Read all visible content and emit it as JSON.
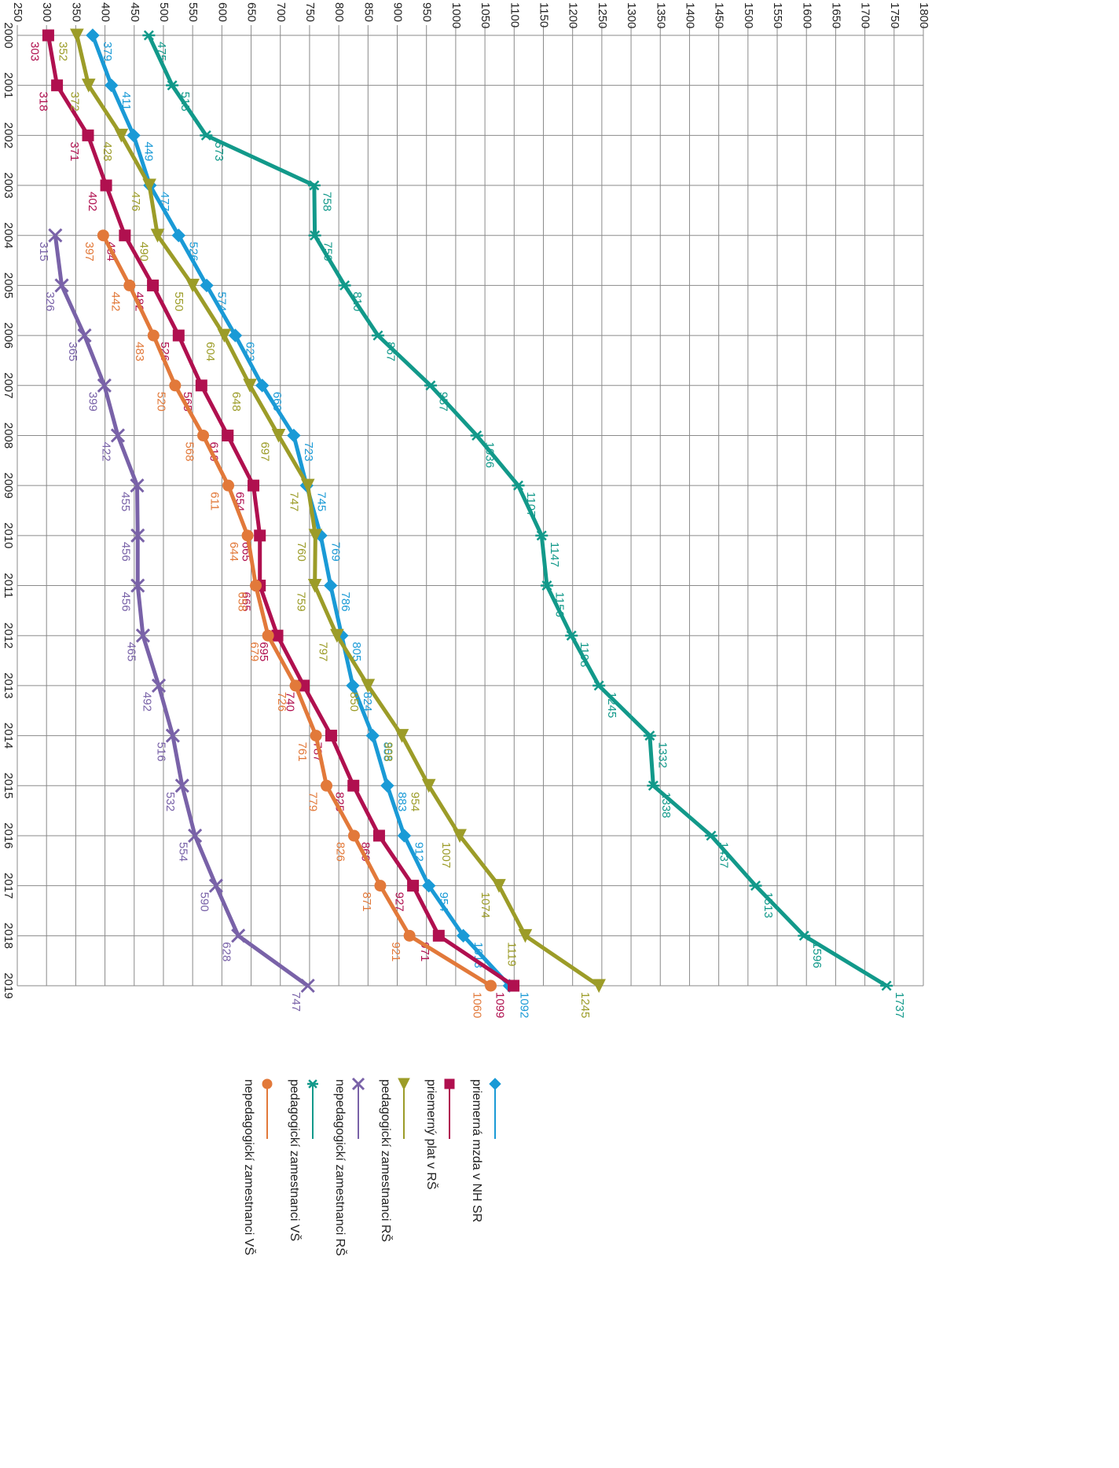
{
  "chart_data": {
    "type": "line",
    "categories": [
      "2000",
      "2001",
      "2002",
      "2003",
      "2004",
      "2005",
      "2006",
      "2007",
      "2008",
      "2009",
      "2010",
      "2011",
      "2012",
      "2013",
      "2014",
      "2015",
      "2016",
      "2017",
      "2018",
      "2019"
    ],
    "ylim": [
      250,
      1800
    ],
    "yticks": [
      250,
      300,
      350,
      400,
      450,
      500,
      550,
      600,
      650,
      700,
      750,
      800,
      850,
      900,
      950,
      1000,
      1050,
      1100,
      1150,
      1200,
      1250,
      1300,
      1350,
      1400,
      1450,
      1500,
      1550,
      1600,
      1650,
      1700,
      1750,
      1800
    ],
    "grid": true,
    "series": [
      {
        "name": "priemerná mzda v NH SR",
        "color": "#1a9ad6",
        "marker": "diamond",
        "values": [
          379,
          411,
          449,
          477,
          526,
          574,
          623,
          669,
          723,
          745,
          769,
          786,
          805,
          824,
          858,
          883,
          912,
          954,
          1013,
          1092
        ]
      },
      {
        "name": "priemerný plat v RŠ",
        "color": "#b0104f",
        "marker": "square",
        "values": [
          303,
          318,
          371,
          402,
          434,
          482,
          526,
          565,
          610,
          654,
          665,
          665,
          695,
          740,
          787,
          825,
          869,
          927,
          971,
          1099
        ]
      },
      {
        "name": "pedagogickí zamestnanci RŠ",
        "color": "#9c9c28",
        "marker": "triangle",
        "values": [
          352,
          372,
          428,
          476,
          490,
          550,
          604,
          648,
          697,
          747,
          760,
          759,
          797,
          850,
          908,
          954,
          1007,
          1074,
          1119,
          1245
        ]
      },
      {
        "name": "nepedagogickí zamestnanci RŠ",
        "color": "#7962a8",
        "marker": "x",
        "values": [
          null,
          null,
          null,
          null,
          315,
          326,
          365,
          399,
          422,
          455,
          456,
          456,
          465,
          492,
          516,
          532,
          554,
          590,
          628,
          747
        ]
      },
      {
        "name": "pedagogickí zamestnanci VŠ",
        "color": "#12998a",
        "marker": "star",
        "values": [
          475,
          515,
          573,
          758,
          759,
          810,
          867,
          957,
          1036,
          1107,
          1147,
          1156,
          1198,
          1245,
          1332,
          1338,
          1437,
          1513,
          1596,
          1737
        ]
      },
      {
        "name": "nepedagogickí zamestnanci VŠ",
        "color": "#e2793a",
        "marker": "circle",
        "values": [
          null,
          null,
          null,
          null,
          397,
          442,
          483,
          520,
          568,
          611,
          644,
          658,
          679,
          726,
          761,
          779,
          826,
          871,
          921,
          1060
        ]
      }
    ]
  }
}
